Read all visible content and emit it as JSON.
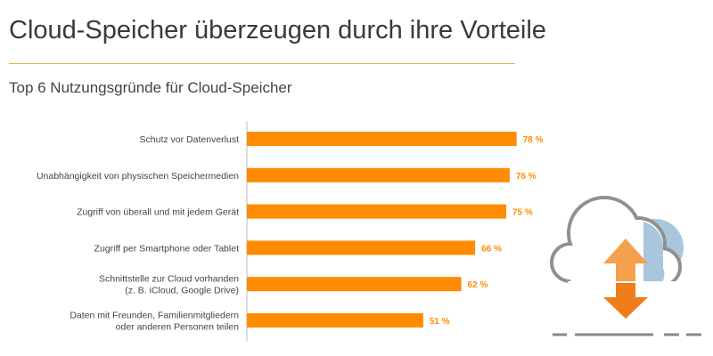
{
  "title": "Cloud-Speicher überzeugen durch ihre Vorteile",
  "subtitle": "Top 6 Nutzungsgründe für Cloud-Speicher",
  "colors": {
    "bar": "#ff8c00",
    "value_label": "#ff8c00",
    "rule": "#f0a848",
    "axis": "#bbbbbb",
    "icon_outline": "#909090",
    "icon_fill_blue": "#a9c6dc",
    "arrow_up": "#f5a04c",
    "arrow_down": "#ee7d1a"
  },
  "icons": [
    "cloud-icon",
    "up-down-arrow-icon"
  ],
  "chart_data": {
    "type": "bar",
    "orientation": "horizontal",
    "categories": [
      [
        "Schutz vor Datenverlust"
      ],
      [
        "Unabhängigkeit von physischen Speichermedien"
      ],
      [
        "Zugriff von überall und mit jedem Gerät"
      ],
      [
        "Zugriff per Smartphone oder Tablet"
      ],
      [
        "Schnittstelle zur Cloud vorhanden",
        "(z. B. iCloud, Google Drive)"
      ],
      [
        "Daten mit Freunden, Familienmitgliedern",
        "oder anderen Personen teilen"
      ]
    ],
    "values": [
      78,
      76,
      75,
      66,
      62,
      51
    ],
    "value_labels": [
      "78 %",
      "76 %",
      "75 %",
      "66 %",
      "62 %",
      "51 %"
    ],
    "unit": "%",
    "xlim": [
      0,
      100
    ],
    "grid": false,
    "legend": "none"
  }
}
